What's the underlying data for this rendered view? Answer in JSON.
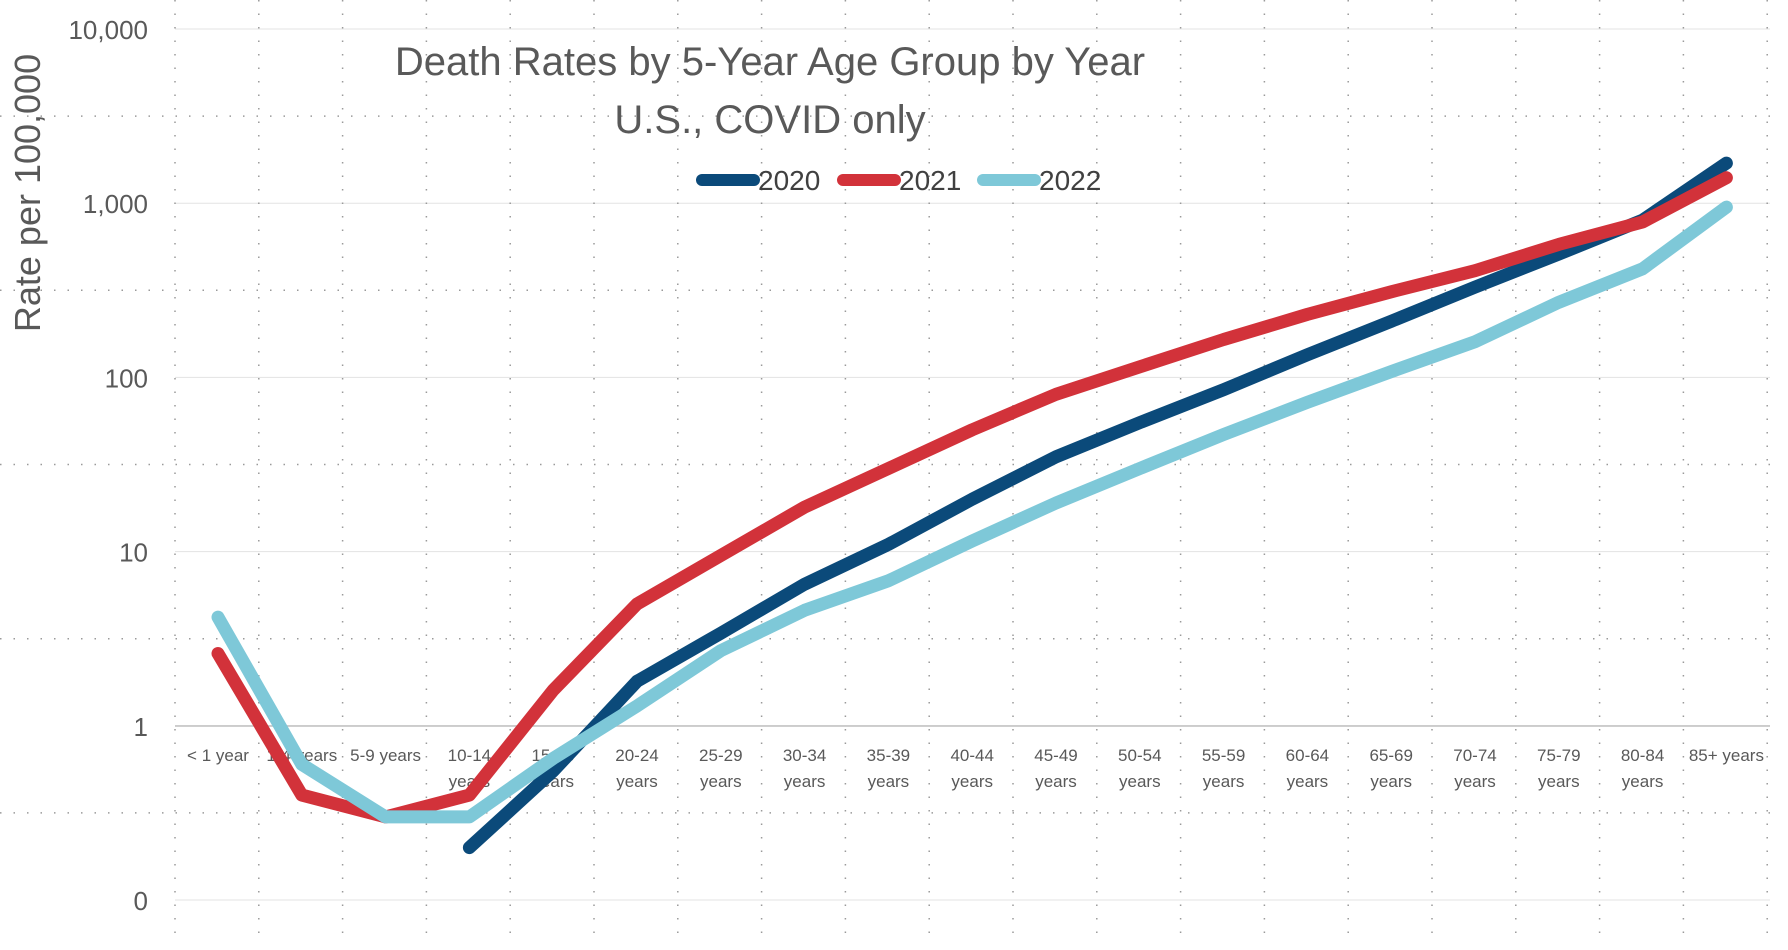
{
  "chart_data": {
    "type": "line",
    "title": "Death Rates by 5-Year Age Group by Year",
    "subtitle": "U.S., COVID only",
    "ylabel": "Rate per 100,000",
    "xlabel": "",
    "yscale": "log",
    "ylim": [
      0.1,
      10000
    ],
    "y_tick_values": [
      0.1,
      1,
      10,
      100,
      1000,
      10000
    ],
    "y_tick_labels": [
      "0",
      "1",
      "10",
      "100",
      "1,000",
      "10,000"
    ],
    "grid": "dotted major and minor gridlines",
    "legend": "top-center",
    "categories": [
      [
        "< 1 year"
      ],
      [
        "1-4 years"
      ],
      [
        "5-9 years"
      ],
      [
        "10-14",
        "years"
      ],
      [
        "15-19",
        "years"
      ],
      [
        "20-24",
        "years"
      ],
      [
        "25-29",
        "years"
      ],
      [
        "30-34",
        "years"
      ],
      [
        "35-39",
        "years"
      ],
      [
        "40-44",
        "years"
      ],
      [
        "45-49",
        "years"
      ],
      [
        "50-54",
        "years"
      ],
      [
        "55-59",
        "years"
      ],
      [
        "60-64",
        "years"
      ],
      [
        "65-69",
        "years"
      ],
      [
        "70-74",
        "years"
      ],
      [
        "75-79",
        "years"
      ],
      [
        "80-84",
        "years"
      ],
      [
        "85+ years"
      ]
    ],
    "series": [
      {
        "name": "2020",
        "color": "#0b4a7a",
        "values": [
          null,
          null,
          null,
          0.2,
          0.55,
          1.8,
          3.4,
          6.5,
          11,
          20,
          35,
          55,
          85,
          135,
          210,
          330,
          510,
          800,
          1700
        ]
      },
      {
        "name": "2021",
        "color": "#d2323a",
        "values": [
          2.6,
          0.4,
          0.3,
          0.4,
          1.6,
          5,
          9.5,
          18,
          30,
          50,
          80,
          115,
          165,
          230,
          310,
          410,
          580,
          780,
          1400
        ]
      },
      {
        "name": "2022",
        "color": "#7ec8d8",
        "values": [
          4.2,
          0.6,
          0.3,
          0.3,
          0.65,
          1.3,
          2.7,
          4.6,
          6.8,
          11.5,
          19,
          30,
          47,
          72,
          108,
          160,
          270,
          420,
          950
        ]
      }
    ]
  }
}
